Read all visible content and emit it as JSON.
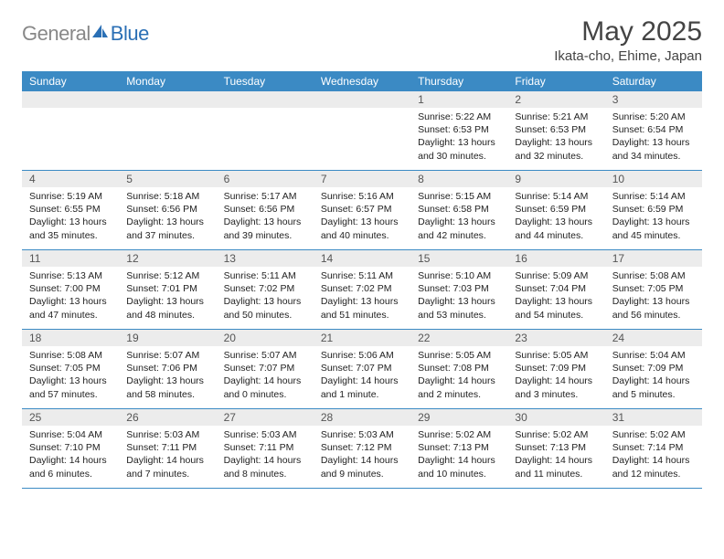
{
  "logo": {
    "gen": "General",
    "blue": "Blue"
  },
  "title": "May 2025",
  "location": "Ikata-cho, Ehime, Japan",
  "colors": {
    "header_bg": "#3b8ac4",
    "header_text": "#ffffff",
    "daynum_bg": "#ececec",
    "sep": "#3b8ac4",
    "text": "#222222",
    "logo_gray": "#888888",
    "logo_blue": "#2a6fb5"
  },
  "day_headers": [
    "Sunday",
    "Monday",
    "Tuesday",
    "Wednesday",
    "Thursday",
    "Friday",
    "Saturday"
  ],
  "weeks": [
    {
      "nums": [
        "",
        "",
        "",
        "",
        "1",
        "2",
        "3"
      ],
      "cells": [
        null,
        null,
        null,
        null,
        {
          "sr": "5:22 AM",
          "ss": "6:53 PM",
          "dl": "13 hours and 30 minutes."
        },
        {
          "sr": "5:21 AM",
          "ss": "6:53 PM",
          "dl": "13 hours and 32 minutes."
        },
        {
          "sr": "5:20 AM",
          "ss": "6:54 PM",
          "dl": "13 hours and 34 minutes."
        }
      ]
    },
    {
      "nums": [
        "4",
        "5",
        "6",
        "7",
        "8",
        "9",
        "10"
      ],
      "cells": [
        {
          "sr": "5:19 AM",
          "ss": "6:55 PM",
          "dl": "13 hours and 35 minutes."
        },
        {
          "sr": "5:18 AM",
          "ss": "6:56 PM",
          "dl": "13 hours and 37 minutes."
        },
        {
          "sr": "5:17 AM",
          "ss": "6:56 PM",
          "dl": "13 hours and 39 minutes."
        },
        {
          "sr": "5:16 AM",
          "ss": "6:57 PM",
          "dl": "13 hours and 40 minutes."
        },
        {
          "sr": "5:15 AM",
          "ss": "6:58 PM",
          "dl": "13 hours and 42 minutes."
        },
        {
          "sr": "5:14 AM",
          "ss": "6:59 PM",
          "dl": "13 hours and 44 minutes."
        },
        {
          "sr": "5:14 AM",
          "ss": "6:59 PM",
          "dl": "13 hours and 45 minutes."
        }
      ]
    },
    {
      "nums": [
        "11",
        "12",
        "13",
        "14",
        "15",
        "16",
        "17"
      ],
      "cells": [
        {
          "sr": "5:13 AM",
          "ss": "7:00 PM",
          "dl": "13 hours and 47 minutes."
        },
        {
          "sr": "5:12 AM",
          "ss": "7:01 PM",
          "dl": "13 hours and 48 minutes."
        },
        {
          "sr": "5:11 AM",
          "ss": "7:02 PM",
          "dl": "13 hours and 50 minutes."
        },
        {
          "sr": "5:11 AM",
          "ss": "7:02 PM",
          "dl": "13 hours and 51 minutes."
        },
        {
          "sr": "5:10 AM",
          "ss": "7:03 PM",
          "dl": "13 hours and 53 minutes."
        },
        {
          "sr": "5:09 AM",
          "ss": "7:04 PM",
          "dl": "13 hours and 54 minutes."
        },
        {
          "sr": "5:08 AM",
          "ss": "7:05 PM",
          "dl": "13 hours and 56 minutes."
        }
      ]
    },
    {
      "nums": [
        "18",
        "19",
        "20",
        "21",
        "22",
        "23",
        "24"
      ],
      "cells": [
        {
          "sr": "5:08 AM",
          "ss": "7:05 PM",
          "dl": "13 hours and 57 minutes."
        },
        {
          "sr": "5:07 AM",
          "ss": "7:06 PM",
          "dl": "13 hours and 58 minutes."
        },
        {
          "sr": "5:07 AM",
          "ss": "7:07 PM",
          "dl": "14 hours and 0 minutes."
        },
        {
          "sr": "5:06 AM",
          "ss": "7:07 PM",
          "dl": "14 hours and 1 minute."
        },
        {
          "sr": "5:05 AM",
          "ss": "7:08 PM",
          "dl": "14 hours and 2 minutes."
        },
        {
          "sr": "5:05 AM",
          "ss": "7:09 PM",
          "dl": "14 hours and 3 minutes."
        },
        {
          "sr": "5:04 AM",
          "ss": "7:09 PM",
          "dl": "14 hours and 5 minutes."
        }
      ]
    },
    {
      "nums": [
        "25",
        "26",
        "27",
        "28",
        "29",
        "30",
        "31"
      ],
      "cells": [
        {
          "sr": "5:04 AM",
          "ss": "7:10 PM",
          "dl": "14 hours and 6 minutes."
        },
        {
          "sr": "5:03 AM",
          "ss": "7:11 PM",
          "dl": "14 hours and 7 minutes."
        },
        {
          "sr": "5:03 AM",
          "ss": "7:11 PM",
          "dl": "14 hours and 8 minutes."
        },
        {
          "sr": "5:03 AM",
          "ss": "7:12 PM",
          "dl": "14 hours and 9 minutes."
        },
        {
          "sr": "5:02 AM",
          "ss": "7:13 PM",
          "dl": "14 hours and 10 minutes."
        },
        {
          "sr": "5:02 AM",
          "ss": "7:13 PM",
          "dl": "14 hours and 11 minutes."
        },
        {
          "sr": "5:02 AM",
          "ss": "7:14 PM",
          "dl": "14 hours and 12 minutes."
        }
      ]
    }
  ],
  "labels": {
    "sunrise": "Sunrise: ",
    "sunset": "Sunset: ",
    "daylight": "Daylight: "
  }
}
